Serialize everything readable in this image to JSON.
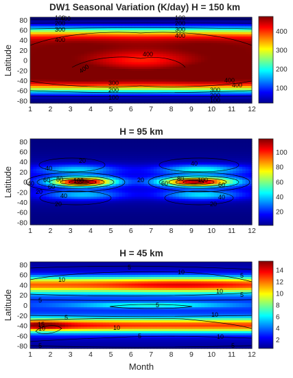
{
  "chart_data": [
    {
      "type": "heatmap",
      "title": "DW1 Seasonal Variation (K/day) H = 150 km",
      "xlabel": "",
      "ylabel": "Latitude",
      "xticks": [
        "1",
        "2",
        "3",
        "4",
        "5",
        "6",
        "7",
        "8",
        "9",
        "10",
        "11",
        "12"
      ],
      "yticks": [
        "80",
        "60",
        "40",
        "20",
        "0",
        "-20",
        "-40",
        "-60",
        "-80"
      ],
      "xlim": [
        1,
        12
      ],
      "ylim": [
        -85,
        85
      ],
      "colorbar": {
        "ticks": [
          "100",
          "200",
          "300",
          "400"
        ],
        "range": [
          10,
          470
        ]
      },
      "contour_labels": [
        "400",
        "300",
        "200",
        "100",
        "400",
        "300",
        "200",
        "100",
        "400",
        "400",
        "300",
        "200",
        "100",
        "400",
        "300",
        "200",
        "100",
        "400",
        "400"
      ],
      "model": {
        "max": 465,
        "min": 10,
        "lat_halfwidth": 62,
        "lat_power": 6,
        "seasonal_amp": 0.03,
        "peak_months": [
          3.5,
          9.5
        ],
        "equatorial_dip": 0.16
      },
      "grid": false
    },
    {
      "type": "heatmap",
      "title": "H = 95 km",
      "xlabel": "",
      "ylabel": "Latitude",
      "xticks": [
        "1",
        "2",
        "3",
        "4",
        "5",
        "6",
        "7",
        "8",
        "9",
        "10",
        "11",
        "12"
      ],
      "yticks": [
        "80",
        "60",
        "40",
        "20",
        "0",
        "-20",
        "-40",
        "-60",
        "-80"
      ],
      "xlim": [
        1,
        12
      ],
      "ylim": [
        -85,
        85
      ],
      "colorbar": {
        "ticks": [
          "20",
          "40",
          "60",
          "80",
          "100"
        ],
        "range": [
          2,
          118
        ]
      },
      "contour_labels": [
        "20",
        "40",
        "60",
        "80",
        "100",
        "40",
        "20",
        "60",
        "20",
        "40",
        "20",
        "40",
        "60",
        "80",
        "100",
        "60",
        "40",
        "20"
      ],
      "model": {
        "max": 115,
        "min": 2,
        "peak_months": [
          3.5,
          9.3
        ],
        "peak_lat": 0
      },
      "grid": false
    },
    {
      "type": "heatmap",
      "title": "H = 45 km",
      "xlabel": "Month",
      "ylabel": "Latitude",
      "xticks": [
        "1",
        "2",
        "3",
        "4",
        "5",
        "6",
        "7",
        "8",
        "9",
        "10",
        "11",
        "12"
      ],
      "yticks": [
        "80",
        "60",
        "40",
        "20",
        "0",
        "-20",
        "-40",
        "-60",
        "-80"
      ],
      "xlim": [
        1,
        12
      ],
      "ylim": [
        -85,
        85
      ],
      "colorbar": {
        "ticks": [
          "2",
          "4",
          "6",
          "8",
          "10",
          "12",
          "14"
        ],
        "range": [
          0.3,
          15.5
        ]
      },
      "contour_labels": [
        "5",
        "10",
        "5",
        "10",
        "5",
        "5",
        "10",
        "10",
        "5",
        "15",
        "10",
        "5",
        "10",
        "5",
        "10",
        "5",
        "5"
      ],
      "model": {
        "max": 15.3,
        "min": 0.3,
        "band_lats": [
          40,
          -40
        ],
        "peak_months": [
          2,
          8.5
        ]
      },
      "grid": false
    }
  ]
}
